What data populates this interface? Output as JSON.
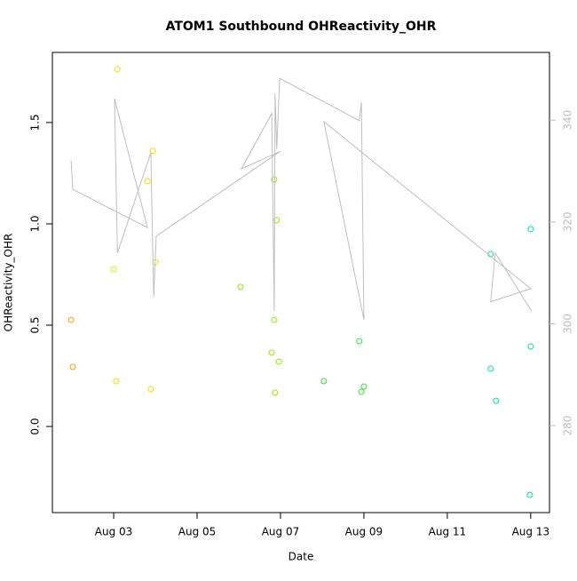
{
  "chart_data": {
    "type": "scatter",
    "title": "ATOM1 Southbound OHReactivity_OHR",
    "x_label": "Date",
    "y_label": "OHReactivity_OHR",
    "xlim": [
      1.53,
      13.45
    ],
    "ylim": [
      -0.425,
      1.846
    ],
    "y2lim": [
      262.9,
      353.3
    ],
    "xticks": [
      {
        "value": 3,
        "label": "Aug 03"
      },
      {
        "value": 5,
        "label": "Aug 05"
      },
      {
        "value": 7,
        "label": "Aug 07"
      },
      {
        "value": 9,
        "label": "Aug 09"
      },
      {
        "value": 11,
        "label": "Aug 11"
      },
      {
        "value": 13,
        "label": "Aug 13"
      }
    ],
    "yticks": [
      {
        "value": 0,
        "label": "0.0"
      },
      0.5,
      {
        "value": 1,
        "label": "1.0"
      },
      1.5
    ],
    "y2ticks": [
      280,
      300,
      320,
      340
    ],
    "y2_color": "#bebebe",
    "series": [
      {
        "type": "scatter",
        "x": [
          1.98,
          2.02,
          3.09,
          3.0,
          3.06,
          3.81,
          3.94,
          4.0,
          3.89,
          6.04,
          6.85,
          6.91,
          6.85,
          6.79,
          6.96,
          6.87,
          8.04,
          8.89,
          8.94,
          9.0,
          12.04,
          12.04,
          12.17,
          13.0,
          13.0,
          12.98
        ],
        "values": [
          0.526,
          0.294,
          1.763,
          0.776,
          0.224,
          1.211,
          1.36,
          0.811,
          0.184,
          0.689,
          1.219,
          1.018,
          0.526,
          0.364,
          0.32,
          0.167,
          0.224,
          0.421,
          0.171,
          0.197,
          0.851,
          0.285,
          0.127,
          0.974,
          0.395,
          -0.338
        ],
        "colors": [
          "#ff9900",
          "#ff9900",
          "#e6e600",
          "#e6e600",
          "#e6e600",
          "#e6e600",
          "#e6e600",
          "#e6e600",
          "#e6e600",
          "#99e600",
          "#99e600",
          "#99e600",
          "#99e600",
          "#99e600",
          "#99e600",
          "#99e600",
          "#33e633",
          "#33e633",
          "#33e633",
          "#33e633",
          "#00e68a",
          "#00e68a",
          "#00e68a",
          "#00e6a0",
          "#00e6a0",
          "#00e6a0"
        ]
      },
      {
        "type": "line",
        "axis": "y2",
        "color": "#bebebe",
        "x": [
          1.98,
          2.02,
          3.81,
          3.02,
          3.09,
          3.89,
          3.96,
          4.02,
          7.0,
          6.06,
          6.79,
          6.85,
          6.87,
          6.91,
          6.98,
          8.89,
          8.94,
          9.0,
          8.04,
          13.0,
          12.04,
          12.15,
          13.02
        ],
        "values": [
          332.0,
          326.4,
          318.9,
          344.2,
          313.9,
          333.6,
          305.3,
          317.2,
          333.9,
          330.4,
          341.3,
          302.5,
          345.3,
          334.3,
          348.2,
          339.9,
          343.5,
          300.8,
          339.7,
          306.9,
          304.3,
          313.9,
          302.5
        ]
      }
    ]
  }
}
